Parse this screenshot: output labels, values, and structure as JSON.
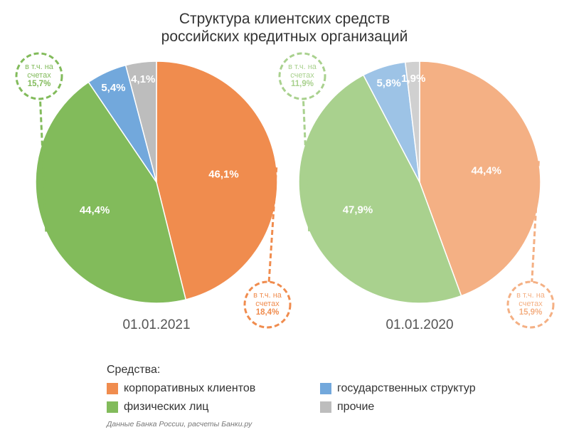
{
  "title": [
    "Структура клиентских средств",
    "российских кредитных организаций"
  ],
  "chart_data": [
    {
      "type": "pie",
      "date": "01.01.2021",
      "slices": [
        {
          "key": "corporate",
          "value": 46.1,
          "label": "46,1%",
          "color": "#f08c4e"
        },
        {
          "key": "individuals",
          "value": 44.4,
          "label": "44,4%",
          "color": "#82bb5b"
        },
        {
          "key": "government",
          "value": 5.4,
          "label": "5,4%",
          "color": "#72a8dc"
        },
        {
          "key": "other",
          "value": 4.1,
          "label": "4,1%",
          "color": "#bdbdbd"
        }
      ],
      "callouts": [
        {
          "key": "individuals",
          "lines": [
            "в т.ч. на",
            "счетах"
          ],
          "value": "15,7%",
          "color": "#82bb5b"
        },
        {
          "key": "corporate",
          "lines": [
            "в т.ч. на",
            "счетах"
          ],
          "value": "18,4%",
          "color": "#f08c4e"
        }
      ]
    },
    {
      "type": "pie",
      "date": "01.01.2020",
      "slices": [
        {
          "key": "corporate",
          "value": 44.4,
          "label": "44,4%",
          "color": "#f4b084"
        },
        {
          "key": "individuals",
          "value": 47.9,
          "label": "47,9%",
          "color": "#a9d18e"
        },
        {
          "key": "government",
          "value": 5.8,
          "label": "5,8%",
          "color": "#9dc3e6"
        },
        {
          "key": "other",
          "value": 1.9,
          "label": "1,9%",
          "color": "#d0d0d0"
        }
      ],
      "callouts": [
        {
          "key": "individuals",
          "lines": [
            "в т.ч. на",
            "счетах"
          ],
          "value": "11,9%",
          "color": "#a9d18e"
        },
        {
          "key": "corporate",
          "lines": [
            "в т.ч. на",
            "счетах"
          ],
          "value": "15,9%",
          "color": "#f4b084"
        }
      ]
    }
  ],
  "legend": {
    "title": "Средства:",
    "items": [
      {
        "label": "корпоративных клиентов",
        "color": "#f08c4e"
      },
      {
        "label": "государственных структур",
        "color": "#72a8dc"
      },
      {
        "label": "физических лиц",
        "color": "#82bb5b"
      },
      {
        "label": "прочие",
        "color": "#bdbdbd"
      }
    ]
  },
  "source": "Данные Банка России, расчеты Банки.ру"
}
